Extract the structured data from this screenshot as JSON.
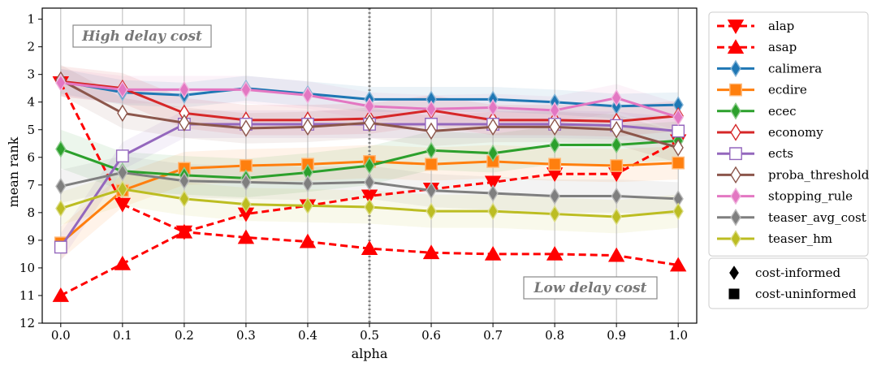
{
  "chart_data": {
    "type": "line",
    "xlabel": "alpha",
    "ylabel": "mean rank",
    "xlim": [
      -0.03,
      1.03
    ],
    "ylim": [
      12,
      0.6
    ],
    "x": [
      0.0,
      0.1,
      0.2,
      0.3,
      0.4,
      0.5,
      0.6,
      0.7,
      0.8,
      0.9,
      1.0
    ],
    "x_tick_labels": [
      "0.0",
      "0.1",
      "0.2",
      "0.3",
      "0.4",
      "0.5",
      "0.6",
      "0.7",
      "0.8",
      "0.9",
      "1.0"
    ],
    "y_ticks": [
      1,
      2,
      3,
      4,
      5,
      6,
      7,
      8,
      9,
      10,
      11,
      12
    ],
    "vline_x": 0.5,
    "annotations": {
      "high": "High delay cost",
      "low": "Low delay cost"
    },
    "series": [
      {
        "name": "alap",
        "color": "#ff0000",
        "marker": "triangle-down",
        "dashed": true,
        "values": [
          3.3,
          7.7,
          8.7,
          8.05,
          7.75,
          7.4,
          7.15,
          6.9,
          6.6,
          6.6,
          5.4
        ]
      },
      {
        "name": "asap",
        "color": "#ff0000",
        "marker": "triangle-up",
        "dashed": true,
        "values": [
          11.0,
          9.85,
          8.7,
          8.9,
          9.05,
          9.3,
          9.45,
          9.5,
          9.5,
          9.55,
          9.9
        ]
      },
      {
        "name": "calimera",
        "color": "#1f77b4",
        "marker": "thin-diamond",
        "fill": true,
        "band": 0.45,
        "values": [
          3.25,
          3.65,
          3.75,
          3.5,
          3.7,
          3.9,
          3.9,
          3.9,
          4.0,
          4.15,
          4.1
        ]
      },
      {
        "name": "ecdire",
        "color": "#ff7f0e",
        "marker": "square",
        "fill": true,
        "band": 0.6,
        "values": [
          9.1,
          7.2,
          6.4,
          6.3,
          6.25,
          6.15,
          6.25,
          6.15,
          6.25,
          6.3,
          6.2
        ]
      },
      {
        "name": "ecec",
        "color": "#2ca02c",
        "marker": "thin-diamond",
        "fill": true,
        "band": 0.7,
        "values": [
          5.7,
          6.5,
          6.65,
          6.75,
          6.55,
          6.3,
          5.75,
          5.85,
          5.55,
          5.55,
          5.4
        ]
      },
      {
        "name": "economy",
        "color": "#d62728",
        "marker": "thin-diamond",
        "fill": false,
        "band": 0.55,
        "values": [
          3.25,
          3.5,
          4.4,
          4.65,
          4.65,
          4.6,
          4.3,
          4.65,
          4.65,
          4.7,
          4.5
        ]
      },
      {
        "name": "ects",
        "color": "#9467bd",
        "marker": "square",
        "fill": false,
        "band": 0.5,
        "values": [
          9.25,
          5.95,
          4.8,
          4.8,
          4.8,
          4.8,
          4.8,
          4.8,
          4.8,
          4.85,
          5.05
        ]
      },
      {
        "name": "proba_threshold",
        "color": "#8c564b",
        "marker": "thin-diamond",
        "fill": false,
        "band": 0.55,
        "values": [
          3.2,
          4.4,
          4.75,
          4.95,
          4.9,
          4.75,
          5.05,
          4.9,
          4.9,
          5.0,
          5.65
        ]
      },
      {
        "name": "stopping_rule",
        "color": "#e377c2",
        "marker": "thin-diamond",
        "fill": true,
        "band": 0.5,
        "values": [
          3.3,
          3.55,
          3.55,
          3.55,
          3.75,
          4.15,
          4.25,
          4.2,
          4.3,
          3.85,
          4.55
        ]
      },
      {
        "name": "teaser_avg_cost",
        "color": "#7f7f7f",
        "marker": "thin-diamond",
        "fill": true,
        "band": 0.6,
        "values": [
          7.05,
          6.55,
          6.85,
          6.9,
          6.95,
          6.9,
          7.2,
          7.3,
          7.4,
          7.4,
          7.5
        ]
      },
      {
        "name": "teaser_hm",
        "color": "#bcbd22",
        "marker": "thin-diamond",
        "fill": true,
        "band": 0.6,
        "values": [
          7.85,
          7.15,
          7.5,
          7.7,
          7.75,
          7.8,
          7.95,
          7.95,
          8.05,
          8.15,
          7.95
        ]
      }
    ],
    "legend_position": "right",
    "legend2": [
      {
        "label": "cost-informed",
        "marker": "diamond"
      },
      {
        "label": "cost-uninformed",
        "marker": "square"
      }
    ]
  }
}
